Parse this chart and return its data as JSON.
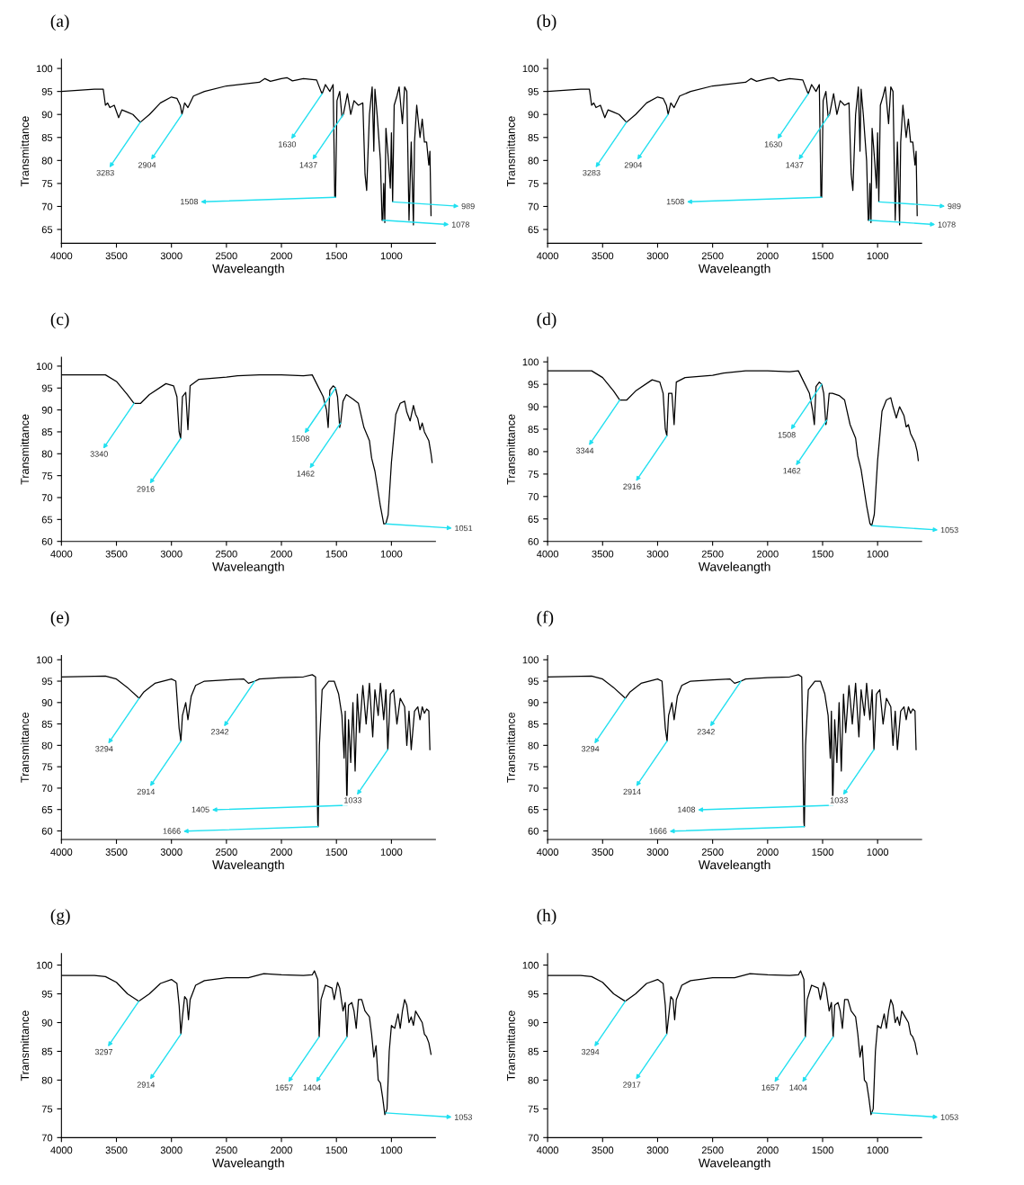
{
  "chart_data": [
    {
      "type": "line",
      "title": "(a)",
      "xlabel": "Waveleangth",
      "ylabel": "Transmittance",
      "xlim": [
        4000,
        600
      ],
      "ylim": [
        62,
        102
      ],
      "xticks": [
        4000,
        3500,
        3000,
        2500,
        2000,
        1500,
        1000
      ],
      "yticks": [
        65,
        70,
        75,
        80,
        85,
        90,
        95,
        100
      ],
      "grid": false,
      "series": [
        {
          "color": "#000000",
          "x": [
            4000,
            3700,
            3620,
            3600,
            3580,
            3560,
            3520,
            3480,
            3450,
            3400,
            3350,
            3283,
            3200,
            3100,
            3000,
            2950,
            2920,
            2904,
            2880,
            2850,
            2800,
            2700,
            2500,
            2200,
            2150,
            2100,
            2000,
            1950,
            1900,
            1800,
            1680,
            1640,
            1630,
            1600,
            1560,
            1530,
            1515,
            1508,
            1495,
            1470,
            1450,
            1437,
            1400,
            1370,
            1340,
            1300,
            1260,
            1240,
            1225,
            1200,
            1175,
            1160,
            1150,
            1130,
            1100,
            1085,
            1078,
            1070,
            1060,
            1050,
            1030,
            1010,
            1000,
            989,
            975,
            950,
            930,
            900,
            880,
            860,
            840,
            820,
            800,
            790,
            770,
            740,
            720,
            700,
            680,
            660,
            650,
            640
          ],
          "values": [
            95,
            95.5,
            95.5,
            92,
            92.5,
            91.5,
            92,
            89.3,
            91,
            90.5,
            90,
            88.3,
            90,
            92.5,
            93.8,
            93.5,
            92,
            90,
            92.5,
            91.5,
            94,
            95,
            96.2,
            97,
            97.8,
            97.2,
            97.8,
            98,
            97.3,
            97.8,
            97.5,
            95,
            94.5,
            96.5,
            95,
            96.5,
            72,
            72,
            93,
            95,
            89.5,
            90,
            94.5,
            90,
            93,
            92,
            92.5,
            77,
            73.5,
            90,
            96,
            82,
            95.5,
            90,
            80,
            67,
            67,
            75,
            66.5,
            87,
            81,
            74,
            86,
            71,
            92,
            94,
            96,
            88,
            96,
            95,
            67,
            84,
            66,
            84,
            92,
            85,
            89,
            84,
            84,
            79,
            82,
            68
          ]
        }
      ],
      "annotations": [
        {
          "text": "3283",
          "x": 3283,
          "y": 88.3
        },
        {
          "text": "2904",
          "x": 2904,
          "y": 90
        },
        {
          "text": "1630",
          "x": 1630,
          "y": 94.5
        },
        {
          "text": "1437",
          "x": 1437,
          "y": 90
        },
        {
          "text": "1508",
          "x": 1508,
          "y": 72
        },
        {
          "text": "1078",
          "x": 1078,
          "y": 67
        },
        {
          "text": "989",
          "x": 989,
          "y": 71
        }
      ]
    },
    {
      "type": "line",
      "title": "(b)",
      "xlabel": "Waveleangth",
      "ylabel": "Transmittance",
      "xlim": [
        4000,
        600
      ],
      "ylim": [
        62,
        102
      ],
      "xticks": [
        4000,
        3500,
        3000,
        2500,
        2000,
        1500,
        1000
      ],
      "yticks": [
        65,
        70,
        75,
        80,
        85,
        90,
        95,
        100
      ],
      "grid": false,
      "series": [
        {
          "color": "#000000",
          "x": [
            4000,
            3700,
            3620,
            3600,
            3580,
            3560,
            3520,
            3480,
            3450,
            3400,
            3350,
            3283,
            3200,
            3100,
            3000,
            2950,
            2920,
            2904,
            2880,
            2850,
            2800,
            2700,
            2500,
            2200,
            2150,
            2100,
            2000,
            1950,
            1900,
            1800,
            1680,
            1640,
            1630,
            1600,
            1560,
            1530,
            1515,
            1508,
            1495,
            1470,
            1450,
            1437,
            1400,
            1370,
            1340,
            1300,
            1260,
            1240,
            1225,
            1200,
            1175,
            1160,
            1150,
            1130,
            1100,
            1085,
            1078,
            1070,
            1060,
            1050,
            1030,
            1010,
            1000,
            989,
            975,
            950,
            930,
            900,
            880,
            860,
            840,
            820,
            800,
            790,
            770,
            740,
            720,
            700,
            680,
            660,
            650,
            640
          ],
          "values": [
            95,
            95.5,
            95.5,
            92,
            92.5,
            91.5,
            92,
            89.3,
            91,
            90.5,
            90,
            88.3,
            90,
            92.5,
            93.8,
            93.5,
            92,
            90,
            92.5,
            91.5,
            94,
            95,
            96.2,
            97,
            97.8,
            97.2,
            97.8,
            98,
            97.3,
            97.8,
            97.5,
            95,
            94.5,
            96.5,
            95,
            96.5,
            72,
            72,
            93,
            95,
            89.5,
            90,
            94.5,
            90,
            93,
            92,
            92.5,
            77,
            73.5,
            90,
            96,
            82,
            95.5,
            90,
            80,
            67,
            67,
            75,
            66.5,
            87,
            81,
            74,
            86,
            71,
            92,
            94,
            96,
            88,
            96,
            95,
            67,
            84,
            66,
            84,
            92,
            85,
            89,
            84,
            84,
            79,
            82,
            68
          ]
        }
      ],
      "annotations": [
        {
          "text": "3283",
          "x": 3283,
          "y": 88.3
        },
        {
          "text": "2904",
          "x": 2904,
          "y": 90
        },
        {
          "text": "1630",
          "x": 1630,
          "y": 94.5
        },
        {
          "text": "1437",
          "x": 1437,
          "y": 90
        },
        {
          "text": "1508",
          "x": 1508,
          "y": 72
        },
        {
          "text": "1078",
          "x": 1078,
          "y": 67
        },
        {
          "text": "989",
          "x": 989,
          "y": 71
        }
      ]
    },
    {
      "type": "line",
      "title": "(c)",
      "xlabel": "Waveleangth",
      "ylabel": "Transmittance",
      "xlim": [
        4000,
        600
      ],
      "ylim": [
        60,
        102
      ],
      "xticks": [
        4000,
        3500,
        3000,
        2500,
        2000,
        1500,
        1000
      ],
      "yticks": [
        60,
        65,
        70,
        75,
        80,
        85,
        90,
        95,
        100
      ],
      "grid": false,
      "series": [
        {
          "color": "#000000",
          "x": [
            4000,
            3600,
            3500,
            3400,
            3340,
            3280,
            3200,
            3050,
            2980,
            2950,
            2930,
            2916,
            2900,
            2870,
            2850,
            2830,
            2750,
            2500,
            2400,
            2200,
            2000,
            1800,
            1720,
            1680,
            1620,
            1590,
            1575,
            1560,
            1530,
            1508,
            1490,
            1470,
            1462,
            1440,
            1410,
            1350,
            1300,
            1250,
            1200,
            1180,
            1150,
            1100,
            1070,
            1051,
            1030,
            1000,
            960,
            920,
            880,
            860,
            830,
            800,
            780,
            760,
            740,
            720,
            700,
            660,
            640,
            630
          ],
          "values": [
            98,
            98,
            96.5,
            93.5,
            91.5,
            91.5,
            93.5,
            96,
            95.5,
            93,
            85,
            83.5,
            93,
            94,
            85.5,
            95.5,
            97,
            97.5,
            97.8,
            98,
            98,
            97.8,
            98,
            96,
            93,
            90,
            86,
            94.5,
            95.5,
            95,
            93,
            86,
            87,
            92,
            93.5,
            92.5,
            91.5,
            86,
            83,
            79,
            76,
            68,
            64,
            64,
            66,
            78,
            89,
            91.5,
            92,
            89.5,
            87.5,
            91,
            89,
            88,
            85.5,
            87,
            85,
            83,
            80,
            78
          ]
        }
      ],
      "annotations": [
        {
          "text": "3340",
          "x": 3340,
          "y": 91.5
        },
        {
          "text": "2916",
          "x": 2916,
          "y": 83.5
        },
        {
          "text": "1508",
          "x": 1508,
          "y": 95
        },
        {
          "text": "1462",
          "x": 1462,
          "y": 87
        },
        {
          "text": "1051",
          "x": 1051,
          "y": 64
        }
      ]
    },
    {
      "type": "line",
      "title": "(d)",
      "xlabel": "Waveleangth",
      "ylabel": "Transmittance",
      "xlim": [
        4000,
        600
      ],
      "ylim": [
        60,
        101
      ],
      "xticks": [
        4000,
        3500,
        3000,
        2500,
        2000,
        1500,
        1000
      ],
      "yticks": [
        60,
        65,
        70,
        75,
        80,
        85,
        90,
        95,
        100
      ],
      "grid": false,
      "series": [
        {
          "color": "#000000",
          "x": [
            4000,
            3600,
            3500,
            3400,
            3344,
            3280,
            3200,
            3050,
            2980,
            2950,
            2930,
            2916,
            2900,
            2870,
            2850,
            2830,
            2750,
            2500,
            2400,
            2200,
            2000,
            1800,
            1720,
            1680,
            1620,
            1590,
            1575,
            1560,
            1530,
            1508,
            1490,
            1470,
            1462,
            1440,
            1410,
            1350,
            1300,
            1250,
            1200,
            1180,
            1150,
            1100,
            1070,
            1053,
            1030,
            1000,
            960,
            920,
            880,
            860,
            830,
            800,
            780,
            760,
            740,
            720,
            700,
            660,
            640,
            630
          ],
          "values": [
            98,
            98,
            96.5,
            93.5,
            91.5,
            91.5,
            93.5,
            96,
            95.5,
            93,
            85,
            83.5,
            93,
            93,
            86,
            95.5,
            96.5,
            97,
            97.5,
            98,
            98,
            97.8,
            98,
            96,
            93,
            89,
            86,
            94.5,
            95.5,
            95,
            93,
            86,
            87,
            93,
            93,
            92.5,
            91.5,
            86,
            83,
            79,
            76,
            68,
            64,
            63.5,
            66,
            78,
            89,
            91.5,
            92,
            90,
            87.5,
            90,
            89,
            88,
            85.5,
            86,
            84,
            82,
            80,
            78
          ]
        }
      ],
      "annotations": [
        {
          "text": "3344",
          "x": 3344,
          "y": 91.5
        },
        {
          "text": "2916",
          "x": 2916,
          "y": 83.5
        },
        {
          "text": "1508",
          "x": 1508,
          "y": 95
        },
        {
          "text": "1462",
          "x": 1462,
          "y": 87
        },
        {
          "text": "1053",
          "x": 1053,
          "y": 63.5
        }
      ]
    },
    {
      "type": "line",
      "title": "(e)",
      "xlabel": "Waveleangth",
      "ylabel": "Transmittance",
      "xlim": [
        4000,
        600
      ],
      "ylim": [
        58,
        101
      ],
      "xticks": [
        4000,
        3500,
        3000,
        2500,
        2000,
        1500,
        1000
      ],
      "yticks": [
        60,
        65,
        70,
        75,
        80,
        85,
        90,
        95,
        100
      ],
      "grid": false,
      "series": [
        {
          "color": "#000000",
          "x": [
            4000,
            3600,
            3500,
            3400,
            3294,
            3250,
            3150,
            3000,
            2960,
            2930,
            2914,
            2900,
            2870,
            2850,
            2820,
            2780,
            2700,
            2500,
            2342,
            2300,
            2242,
            2200,
            2000,
            1800,
            1720,
            1690,
            1670,
            1666,
            1655,
            1630,
            1570,
            1520,
            1480,
            1450,
            1430,
            1420,
            1405,
            1390,
            1370,
            1350,
            1330,
            1310,
            1290,
            1260,
            1230,
            1200,
            1170,
            1150,
            1120,
            1100,
            1070,
            1050,
            1033,
            1010,
            980,
            950,
            920,
            880,
            860,
            840,
            820,
            790,
            760,
            740,
            720,
            700,
            680,
            660,
            650
          ],
          "values": [
            96,
            96.2,
            95.5,
            93.5,
            91,
            92.5,
            94.5,
            95.5,
            95,
            84,
            81,
            87,
            90,
            86,
            91.5,
            94,
            95,
            95.3,
            95.5,
            94.5,
            95,
            95.5,
            95.8,
            96,
            96.5,
            96,
            62,
            61,
            80,
            93,
            95,
            95,
            92,
            87,
            77,
            88,
            66,
            86,
            76,
            90,
            74,
            92,
            83,
            94,
            85,
            94.5,
            82,
            93,
            87,
            94.5,
            86,
            93,
            79,
            92,
            93,
            85,
            91,
            89,
            80,
            88,
            79,
            88,
            89,
            86,
            89,
            87.5,
            88.5,
            88,
            79
          ]
        }
      ],
      "annotations": [
        {
          "text": "3294",
          "x": 3294,
          "y": 91
        },
        {
          "text": "2914",
          "x": 2914,
          "y": 81
        },
        {
          "text": "2342",
          "x": 2242,
          "y": 95
        },
        {
          "text": "1666",
          "x": 1666,
          "y": 61
        },
        {
          "text": "1405",
          "x": 1405,
          "y": 66
        },
        {
          "text": "1033",
          "x": 1033,
          "y": 79
        }
      ]
    },
    {
      "type": "line",
      "title": "(f)",
      "xlabel": "Waveleangth",
      "ylabel": "Transmittance",
      "xlim": [
        4000,
        600
      ],
      "ylim": [
        58,
        101
      ],
      "xticks": [
        4000,
        3500,
        3000,
        2500,
        2000,
        1500,
        1000
      ],
      "yticks": [
        60,
        65,
        70,
        75,
        80,
        85,
        90,
        95,
        100
      ],
      "grid": false,
      "series": [
        {
          "color": "#000000",
          "x": [
            4000,
            3600,
            3500,
            3400,
            3294,
            3250,
            3150,
            3000,
            2960,
            2930,
            2914,
            2900,
            2870,
            2850,
            2820,
            2780,
            2700,
            2500,
            2342,
            2300,
            2242,
            2200,
            2000,
            1800,
            1720,
            1690,
            1670,
            1666,
            1655,
            1630,
            1570,
            1520,
            1480,
            1450,
            1430,
            1420,
            1408,
            1390,
            1370,
            1350,
            1330,
            1310,
            1290,
            1260,
            1230,
            1200,
            1170,
            1150,
            1120,
            1100,
            1070,
            1050,
            1033,
            1010,
            980,
            950,
            920,
            880,
            860,
            840,
            820,
            790,
            760,
            740,
            720,
            700,
            680,
            660,
            650
          ],
          "values": [
            96,
            96.2,
            95.5,
            93.5,
            91,
            92.5,
            94.5,
            95.5,
            95,
            84,
            81,
            87,
            90,
            86,
            91.5,
            94,
            95,
            95.3,
            95.5,
            94.5,
            95,
            95.5,
            95.8,
            96,
            96.5,
            96,
            62,
            61,
            80,
            93,
            95,
            95,
            92,
            87,
            77,
            88,
            66,
            86,
            76,
            90,
            74,
            92,
            83,
            94,
            85,
            94.5,
            82,
            93,
            87,
            94.5,
            86,
            93,
            79,
            92,
            93,
            85,
            91,
            89,
            80,
            88,
            79,
            88,
            89,
            86,
            89,
            87.5,
            88.5,
            88,
            79
          ]
        }
      ],
      "annotations": [
        {
          "text": "3294",
          "x": 3294,
          "y": 91
        },
        {
          "text": "2914",
          "x": 2914,
          "y": 81
        },
        {
          "text": "2342",
          "x": 2242,
          "y": 95
        },
        {
          "text": "1666",
          "x": 1666,
          "y": 61
        },
        {
          "text": "1408",
          "x": 1408,
          "y": 66
        },
        {
          "text": "1033",
          "x": 1033,
          "y": 79
        }
      ]
    },
    {
      "type": "line",
      "title": "(g)",
      "xlabel": "Waveleangth",
      "ylabel": "Transmittance",
      "xlim": [
        4000,
        600
      ],
      "ylim": [
        70,
        102
      ],
      "xticks": [
        4000,
        3500,
        3000,
        2500,
        2000,
        1500,
        1000
      ],
      "yticks": [
        70,
        75,
        80,
        85,
        90,
        95,
        100
      ],
      "grid": false,
      "series": [
        {
          "color": "#000000",
          "x": [
            4000,
            3700,
            3600,
            3500,
            3400,
            3297,
            3200,
            3100,
            3000,
            2950,
            2930,
            2914,
            2900,
            2880,
            2860,
            2845,
            2830,
            2780,
            2700,
            2500,
            2300,
            2160,
            2000,
            1800,
            1720,
            1700,
            1670,
            1657,
            1640,
            1600,
            1540,
            1520,
            1490,
            1470,
            1440,
            1420,
            1404,
            1390,
            1360,
            1340,
            1320,
            1300,
            1270,
            1240,
            1200,
            1180,
            1160,
            1140,
            1120,
            1100,
            1080,
            1060,
            1053,
            1040,
            1020,
            1000,
            970,
            940,
            920,
            900,
            880,
            860,
            840,
            820,
            800,
            780,
            750,
            720,
            700,
            680,
            660,
            640
          ],
          "values": [
            98.2,
            98.2,
            98,
            97,
            95,
            93.7,
            95,
            96.8,
            97.5,
            96.8,
            93,
            88,
            91,
            94.5,
            94,
            90.5,
            94,
            96.5,
            97.3,
            97.8,
            97.8,
            98.5,
            98.3,
            98.2,
            98.3,
            99,
            97.5,
            87.5,
            94,
            96.5,
            96,
            94,
            97,
            96,
            92,
            93.5,
            87.5,
            93,
            93.5,
            92,
            89,
            94,
            94,
            92,
            91,
            88,
            84,
            86,
            80,
            79.5,
            77,
            74,
            74.3,
            75,
            85,
            89.5,
            89,
            91.5,
            89,
            92,
            94,
            93,
            90,
            91,
            89.5,
            92,
            91,
            90,
            88,
            87.5,
            86.5,
            84.5
          ]
        }
      ],
      "annotations": [
        {
          "text": "3297",
          "x": 3297,
          "y": 93.7
        },
        {
          "text": "2914",
          "x": 2914,
          "y": 88
        },
        {
          "text": "1657",
          "x": 1657,
          "y": 87.5
        },
        {
          "text": "1404",
          "x": 1404,
          "y": 87.5
        },
        {
          "text": "1053",
          "x": 1053,
          "y": 74.3
        }
      ]
    },
    {
      "type": "line",
      "title": "(h)",
      "xlabel": "Waveleangth",
      "ylabel": "Transmittance",
      "xlim": [
        4000,
        600
      ],
      "ylim": [
        70,
        102
      ],
      "xticks": [
        4000,
        3500,
        3000,
        2500,
        2000,
        1500,
        1000
      ],
      "yticks": [
        70,
        75,
        80,
        85,
        90,
        95,
        100
      ],
      "grid": false,
      "series": [
        {
          "color": "#000000",
          "x": [
            4000,
            3700,
            3600,
            3500,
            3400,
            3294,
            3200,
            3100,
            3000,
            2950,
            2930,
            2917,
            2900,
            2880,
            2860,
            2845,
            2830,
            2780,
            2700,
            2500,
            2300,
            2160,
            2000,
            1800,
            1720,
            1700,
            1670,
            1657,
            1640,
            1600,
            1540,
            1520,
            1490,
            1470,
            1440,
            1420,
            1404,
            1390,
            1360,
            1340,
            1320,
            1300,
            1270,
            1240,
            1200,
            1180,
            1160,
            1140,
            1120,
            1100,
            1080,
            1060,
            1053,
            1040,
            1020,
            1000,
            970,
            940,
            920,
            900,
            880,
            860,
            840,
            820,
            800,
            780,
            750,
            720,
            700,
            680,
            660,
            640
          ],
          "values": [
            98.2,
            98.2,
            98,
            97,
            95,
            93.7,
            95,
            96.8,
            97.5,
            96.8,
            93,
            88,
            91,
            94.5,
            94,
            90.5,
            94,
            96.5,
            97.3,
            97.8,
            97.8,
            98.5,
            98.3,
            98.2,
            98.3,
            99,
            97.5,
            87.5,
            94,
            96.5,
            96,
            94,
            97,
            96,
            92,
            93.5,
            87.5,
            93,
            93.5,
            92,
            89,
            94,
            94,
            92,
            91,
            88,
            84,
            86,
            80,
            79.5,
            77,
            74,
            74.3,
            75,
            85,
            89.5,
            89,
            91.5,
            89,
            92,
            94,
            93,
            90,
            91,
            89.5,
            92,
            91,
            90,
            88,
            87.5,
            86.5,
            84.5
          ]
        }
      ],
      "annotations": [
        {
          "text": "3294",
          "x": 3294,
          "y": 93.7
        },
        {
          "text": "2917",
          "x": 2917,
          "y": 88
        },
        {
          "text": "1657",
          "x": 1657,
          "y": 87.5
        },
        {
          "text": "1404",
          "x": 1404,
          "y": 87.5
        },
        {
          "text": "1053",
          "x": 1053,
          "y": 74.3
        }
      ]
    }
  ]
}
